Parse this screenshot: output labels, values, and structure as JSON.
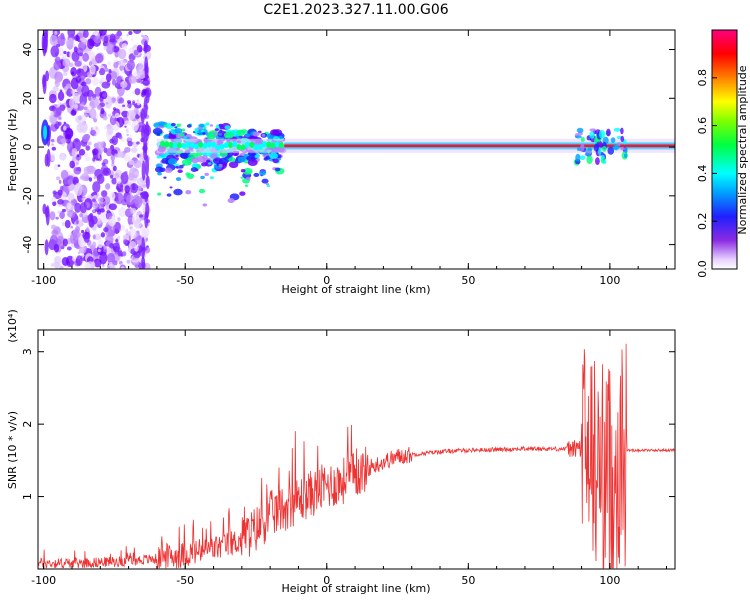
{
  "title": "C2E1.2023.327.11.00.G06",
  "colors": {
    "snr_line": "#ee3333",
    "axis": "#000000",
    "background": "#ffffff"
  },
  "chart_data": [
    {
      "type": "heatmap",
      "xlabel": "Height of straight line (km)",
      "ylabel": "Frequency (Hz)",
      "xlim": [
        -102,
        123
      ],
      "ylim": [
        -50,
        48
      ],
      "xticks": [
        -100,
        -50,
        0,
        50,
        100
      ],
      "yticks": [
        -40,
        -20,
        0,
        20,
        40
      ],
      "colorbar": {
        "label": "Normalized spectral amplitude",
        "range": [
          0,
          1
        ],
        "ticks": [
          "0.0",
          "0.2",
          "0.4",
          "0.6",
          "0.8"
        ],
        "colormap": "rainbow (white-violet-blue-cyan-green-yellow-red-magenta)"
      },
      "features": {
        "noise_band_height_km": [
          -97,
          -63
        ],
        "strong_line_frequency_hz": 0.5,
        "strong_line_height_km": [
          -60,
          123
        ]
      }
    },
    {
      "type": "line",
      "xlabel": "Height of straight line (km)",
      "ylabel": "SNR (10 * v/v)",
      "yscale_label": "(x10⁴)",
      "xlim": [
        -102,
        123
      ],
      "ylim": [
        0,
        3.3
      ],
      "xticks": [
        -100,
        -50,
        0,
        50,
        100
      ],
      "yticks": [
        1,
        2,
        3
      ],
      "series": [
        {
          "x": [
            -102,
            -90,
            -75,
            -60,
            -50,
            -40,
            -30,
            -25,
            -20,
            -15,
            -10,
            -5,
            0,
            5,
            10,
            15,
            20,
            25,
            30,
            40,
            50,
            60,
            70,
            80,
            85,
            88,
            90,
            92,
            94,
            96,
            98,
            100,
            102,
            104,
            106,
            110,
            120,
            123
          ],
          "y": [
            0.08,
            0.08,
            0.1,
            0.14,
            0.2,
            0.28,
            0.4,
            0.55,
            0.75,
            0.85,
            0.95,
            1.05,
            1.15,
            1.2,
            1.3,
            1.4,
            1.48,
            1.55,
            1.58,
            1.62,
            1.64,
            1.65,
            1.66,
            1.66,
            1.66,
            1.66,
            1.66,
            1.6,
            1.5,
            1.4,
            1.3,
            1.3,
            1.35,
            1.5,
            1.64,
            1.64,
            1.64,
            1.64
          ]
        }
      ]
    }
  ]
}
